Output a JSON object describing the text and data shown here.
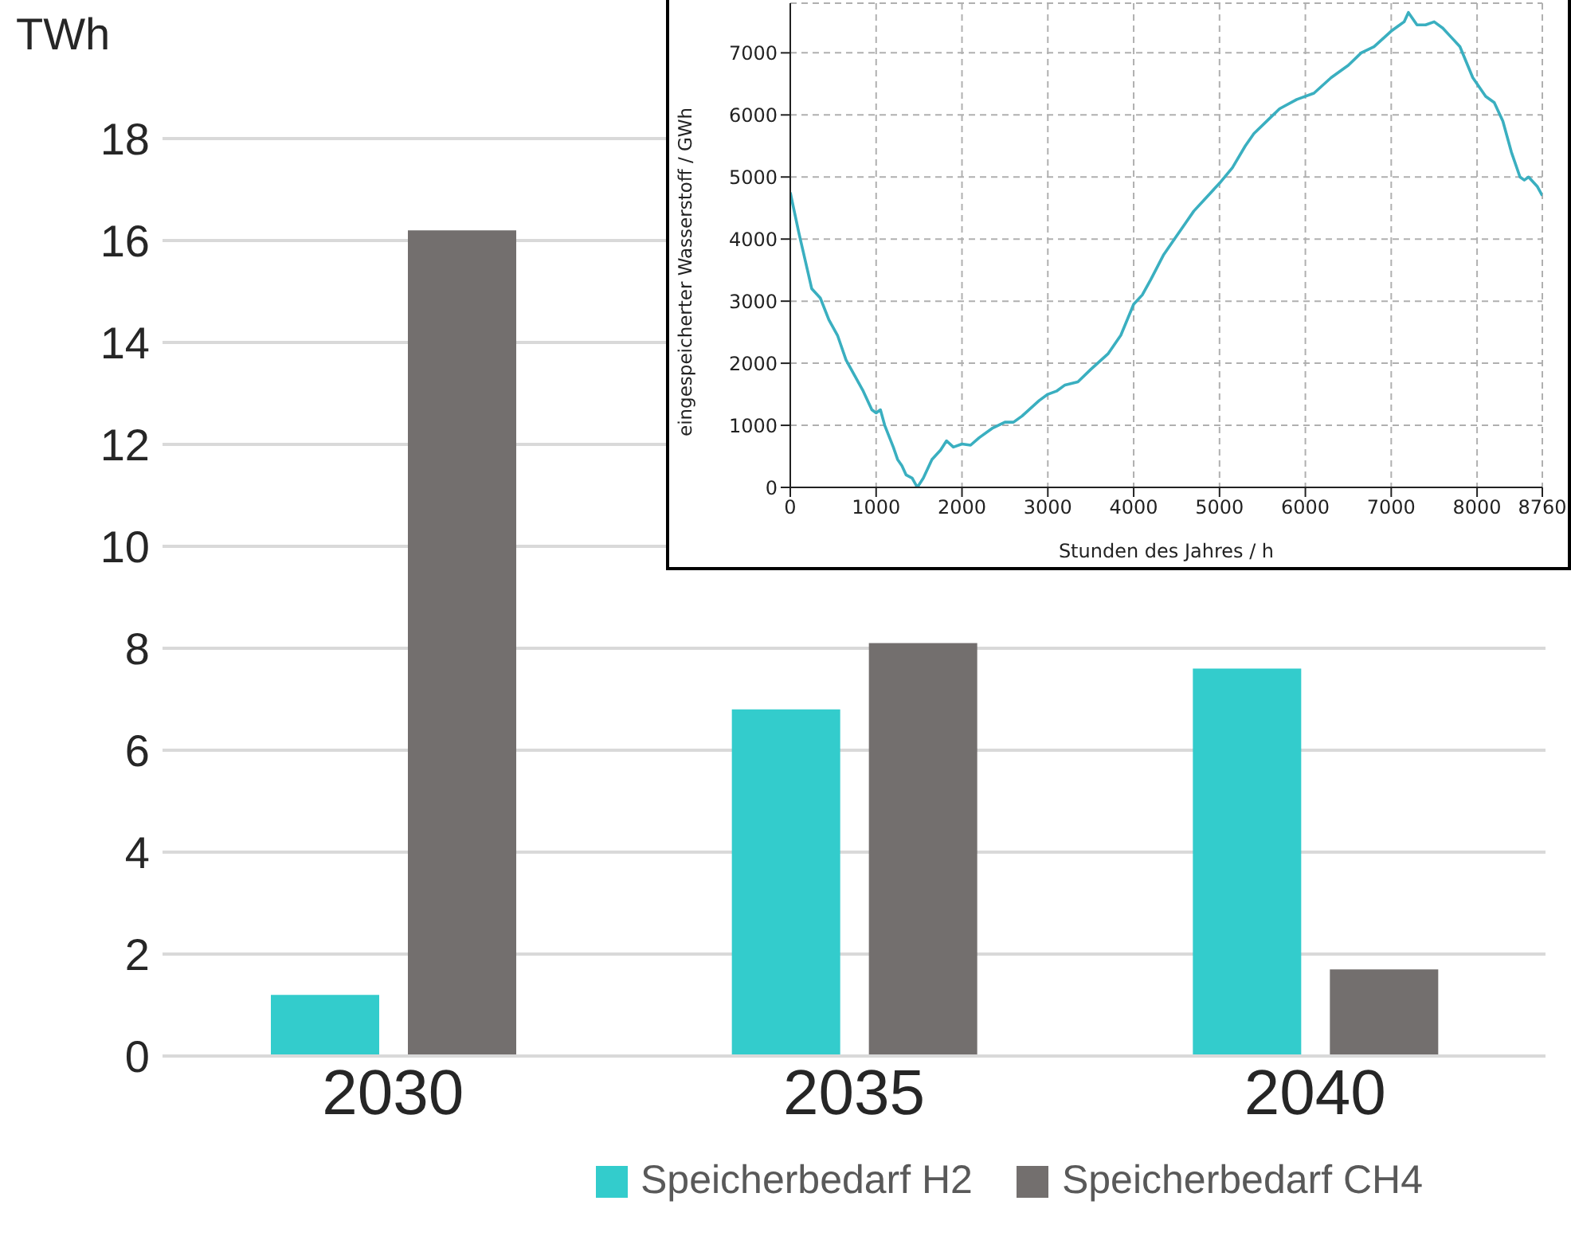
{
  "chart_data": [
    {
      "type": "bar",
      "ylabel": "TWh",
      "categories": [
        "2030",
        "2035",
        "2040"
      ],
      "series": [
        {
          "name": "Speicherbedarf H2",
          "color": "#33cccc",
          "values": [
            1.2,
            6.8,
            7.6
          ]
        },
        {
          "name": "Speicherbedarf CH4",
          "color": "#736f6e",
          "values": [
            16.2,
            8.1,
            1.7
          ]
        }
      ],
      "ylim": [
        0,
        18
      ],
      "yticks": [
        0,
        2,
        4,
        6,
        8,
        10,
        12,
        14,
        16,
        18
      ],
      "grid": "y",
      "legend": "bottom"
    },
    {
      "type": "line",
      "xlabel": "Stunden des Jahres / h",
      "ylabel": "eingespeicherter Wasserstoff / GWh",
      "series": [
        {
          "color": "#3aafc0",
          "x": [
            0,
            100,
            200,
            250,
            350,
            450,
            550,
            650,
            750,
            850,
            950,
            1000,
            1050,
            1100,
            1200,
            1250,
            1300,
            1350,
            1420,
            1480,
            1550,
            1650,
            1750,
            1820,
            1900,
            2000,
            2100,
            2200,
            2350,
            2500,
            2600,
            2700,
            2900,
            3000,
            3100,
            3200,
            3350,
            3500,
            3700,
            3850,
            4000,
            4100,
            4200,
            4350,
            4500,
            4600,
            4700,
            4900,
            5000,
            5150,
            5300,
            5400,
            5550,
            5700,
            5900,
            6100,
            6300,
            6500,
            6650,
            6800,
            7000,
            7100,
            7150,
            7200,
            7300,
            7400,
            7500,
            7600,
            7700,
            7800,
            7950,
            8100,
            8200,
            8300,
            8400,
            8500,
            8550,
            8600,
            8700,
            8760
          ],
          "values": [
            4750,
            4100,
            3500,
            3200,
            3050,
            2700,
            2450,
            2050,
            1800,
            1550,
            1250,
            1200,
            1250,
            1000,
            650,
            450,
            350,
            200,
            150,
            0,
            150,
            450,
            600,
            750,
            650,
            700,
            680,
            800,
            950,
            1050,
            1050,
            1150,
            1400,
            1500,
            1550,
            1650,
            1700,
            1900,
            2150,
            2450,
            2950,
            3100,
            3350,
            3750,
            4050,
            4250,
            4450,
            4750,
            4900,
            5150,
            5500,
            5700,
            5900,
            6100,
            6250,
            6350,
            6600,
            6800,
            7000,
            7100,
            7350,
            7450,
            7500,
            7650,
            7450,
            7450,
            7500,
            7400,
            7250,
            7100,
            6600,
            6300,
            6200,
            5900,
            5400,
            5000,
            4950,
            5000,
            4850,
            4700
          ]
        }
      ],
      "xlim": [
        0,
        8760
      ],
      "xticks": [
        0,
        1000,
        2000,
        3000,
        4000,
        5000,
        6000,
        7000,
        8000,
        8760
      ],
      "ylim": [
        0,
        7800
      ],
      "yticks": [
        0,
        1000,
        2000,
        3000,
        4000,
        5000,
        6000,
        7000
      ],
      "grid": true
    }
  ]
}
